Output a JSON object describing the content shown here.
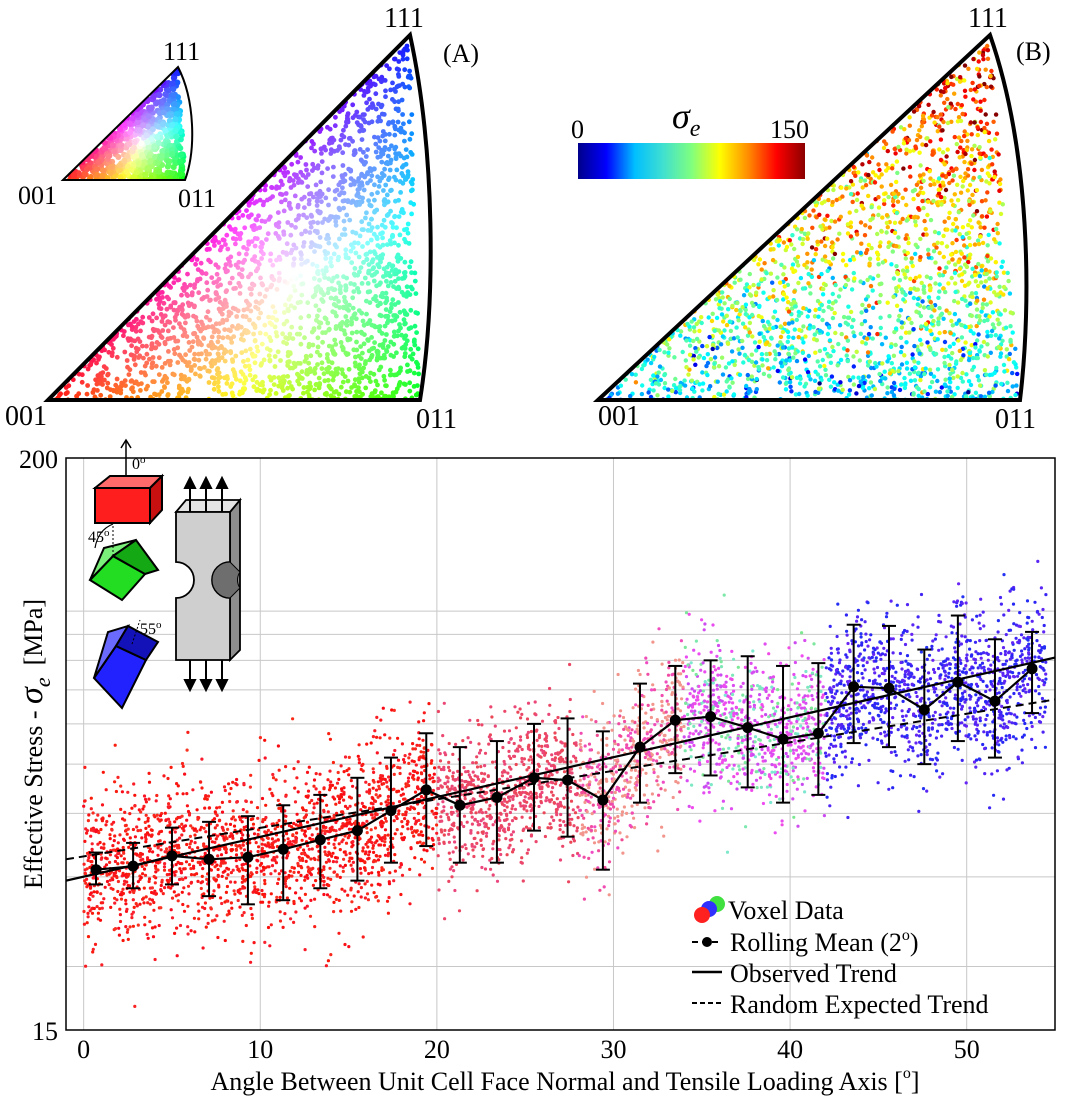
{
  "panel_a": {
    "label": "(A)",
    "corner_001": "001",
    "corner_011": "011",
    "corner_111": "111",
    "key_001": "001",
    "key_011": "011",
    "key_111": "111"
  },
  "panel_b": {
    "label": "(B)",
    "corner_001": "001",
    "corner_011": "011",
    "corner_111": "111",
    "colorbar_symbol": "σ",
    "colorbar_symbol_sub": "e",
    "colorbar_min": "0",
    "colorbar_max": "150",
    "colorbar_colors": [
      "#00008b",
      "#0000ff",
      "#00bfff",
      "#40e0d0",
      "#7fff7f",
      "#ffff00",
      "#ff8c00",
      "#ff0000",
      "#8b0000"
    ]
  },
  "inset": {
    "angle_0": "0",
    "angle_45": "45",
    "angle_55": "55",
    "degree_mark": "o",
    "colors": {
      "cube_0": "#ff2020",
      "cube_45": "#22dd22",
      "cube_55": "#2020ff",
      "specimen": "#cfcfcf"
    }
  },
  "legend": {
    "voxel": "Voxel Data",
    "rolling": "Rolling Mean (2",
    "rolling_deg": "o",
    "rolling_end": ")",
    "observed": "Observed Trend",
    "random": "Random Expected Trend"
  },
  "chart_data": {
    "type": "scatter",
    "xlabel": "Angle Between Unit Cell Face Normal and Tensile Loading Axis [",
    "xlabel_deg": "o",
    "xlabel_end": "]",
    "ylabel_prefix": "Effective Stress - ",
    "ylabel_symbol": "σ",
    "ylabel_sub": "e",
    "ylabel_unit": "[MPa]",
    "xlim": [
      -1,
      55
    ],
    "ylim": [
      15,
      200
    ],
    "yscale": "log",
    "xticks": [
      0,
      10,
      20,
      30,
      40,
      50
    ],
    "ytick_labels": [
      {
        "value": 200,
        "text": "200"
      },
      {
        "value": 15,
        "text": "15"
      }
    ],
    "grid": true,
    "legend_position": "bottom-right",
    "series": [
      {
        "name": "Rolling Mean (2o)",
        "style": "line-markers-errorbars",
        "x": [
          0.7,
          2.8,
          5.0,
          7.1,
          9.3,
          11.3,
          13.4,
          15.5,
          17.4,
          19.4,
          21.3,
          23.4,
          25.5,
          27.4,
          29.4,
          31.5,
          33.5,
          35.5,
          37.6,
          39.6,
          41.6,
          43.6,
          45.6,
          47.6,
          49.5,
          51.6,
          53.7
        ],
        "y": [
          31,
          31.5,
          33,
          32.5,
          32.8,
          34,
          35.5,
          37,
          40.5,
          44.5,
          41.5,
          43,
          47,
          46.5,
          42.5,
          54,
          61,
          62,
          59,
          56,
          57.5,
          71,
          70.5,
          64,
          72.5,
          66.5,
          77
        ],
        "err_low": [
          29,
          28.5,
          29,
          27.5,
          26.5,
          27,
          28.5,
          29.5,
          32,
          34.5,
          32,
          32,
          37,
          36,
          31,
          42,
          48,
          47.5,
          45,
          42,
          43.5,
          55,
          54,
          50,
          55.5,
          51.5,
          63
        ],
        "err_high": [
          33.5,
          35,
          37.5,
          38.5,
          39.5,
          41.5,
          43.5,
          47,
          51.5,
          57.5,
          54,
          55.5,
          60,
          61.5,
          58,
          72,
          78,
          80,
          81.5,
          78,
          79,
          94,
          93.5,
          84,
          98,
          88,
          91
        ]
      },
      {
        "name": "Observed Trend",
        "style": "solid",
        "x": [
          -1,
          55
        ],
        "y": [
          29.5,
          81
        ]
      },
      {
        "name": "Random Expected Trend",
        "style": "dashed",
        "x": [
          -1,
          55
        ],
        "y": [
          32.5,
          67
        ]
      }
    ]
  }
}
